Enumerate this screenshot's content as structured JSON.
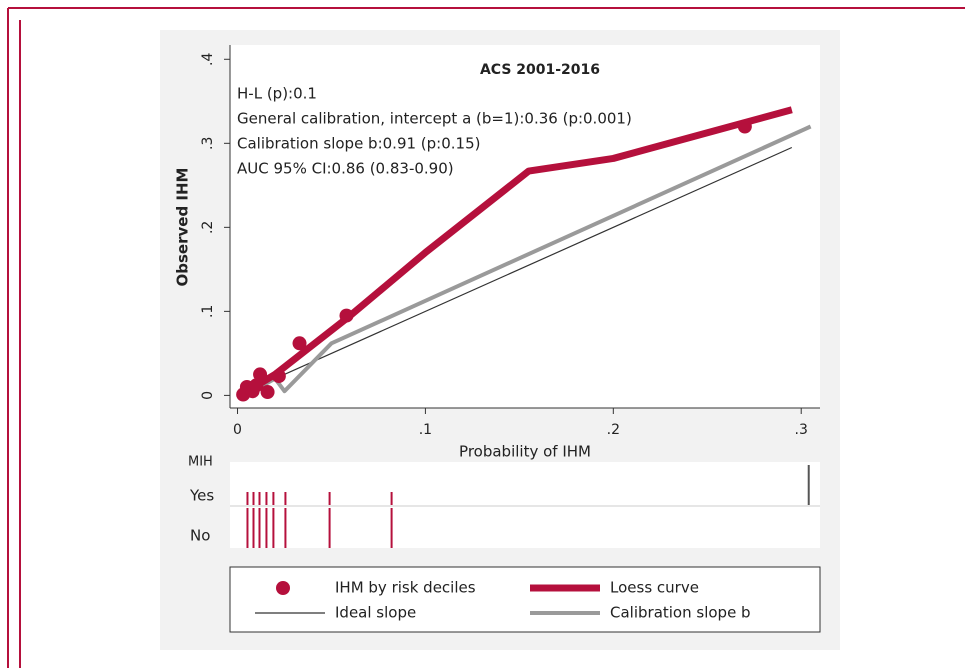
{
  "chart_data": {
    "type": "line",
    "title": "ACS 2001-2016",
    "annotations": [
      "H-L (p):0.1",
      "General calibration, intercept a (b=1):0.36 (p:0.001)",
      "Calibration slope b:0.91 (p:0.15)",
      "AUC 95% CI:0.86 (0.83-0.90)"
    ],
    "x_label": "Probability of IHM",
    "y_label": "Observed IHM",
    "xlim": [
      -0.004,
      0.31
    ],
    "ylim": [
      -0.015,
      0.417
    ],
    "xticks": [
      0,
      {
        "value": 0.1,
        "label": ".1"
      },
      {
        "value": 0.2,
        "label": ".2"
      },
      {
        "value": 0.3,
        "label": ".3"
      }
    ],
    "yticks": [
      0,
      {
        "value": 0.1,
        "label": ".1"
      },
      {
        "value": 0.2,
        "label": ".2"
      },
      {
        "value": 0.3,
        "label": ".3"
      },
      {
        "value": 0.4,
        "label": ".4"
      }
    ],
    "series": [
      {
        "name": "IHM by risk deciles",
        "color": "#b5103c",
        "mode": "markers",
        "x": [
          0.003,
          0.005,
          0.008,
          0.01,
          0.012,
          0.016,
          0.022,
          0.033,
          0.058,
          0.27
        ],
        "values": [
          0.001,
          0.01,
          0.005,
          0.012,
          0.025,
          0.004,
          0.023,
          0.062,
          0.095,
          0.32
        ]
      },
      {
        "name": "Loess curve",
        "color": "#b5103c",
        "mode": "thick",
        "x": [
          0.003,
          0.02,
          0.06,
          0.1,
          0.155,
          0.2,
          0.295
        ],
        "values": [
          0.002,
          0.025,
          0.095,
          0.17,
          0.267,
          0.282,
          0.34
        ]
      },
      {
        "name": "Ideal slope",
        "color": "#333333",
        "mode": "thin",
        "x": [
          0.003,
          0.295
        ],
        "values": [
          0.003,
          0.295
        ]
      },
      {
        "name": "Calibration slope b",
        "color": "#9a9a9a",
        "mode": "medium",
        "x": [
          0.004,
          0.02,
          0.025,
          0.05,
          0.305
        ],
        "values": [
          0.0,
          0.02,
          0.005,
          0.062,
          0.32
        ]
      }
    ],
    "rug": {
      "title": "MIH",
      "groups": [
        "Yes",
        "No"
      ],
      "yes_x": [
        0.0053,
        0.0085,
        0.0117,
        0.0154,
        0.0191,
        0.0255,
        0.049,
        0.082,
        0.304
      ],
      "no_x": [
        0.0053,
        0.0085,
        0.0117,
        0.0154,
        0.0191,
        0.0255,
        0.049,
        0.082
      ]
    }
  }
}
